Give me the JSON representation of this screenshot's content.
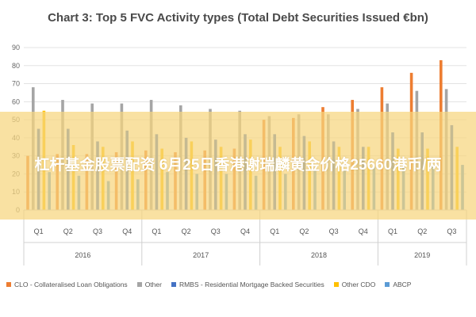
{
  "banner": {
    "text": "杠杆基金股票配资 6月25日香港谢瑞麟黄金价格25660港币/两"
  },
  "chart_data": {
    "type": "bar",
    "title": "Chart 3: Top 5 FVC Activity types (Total Debt Securities Issued €bn)",
    "xlabel": "",
    "ylabel": "",
    "ylim": [
      0,
      90
    ],
    "yticks": [
      0,
      10,
      20,
      30,
      40,
      50,
      60,
      70,
      80,
      90
    ],
    "grid": true,
    "legend_position": "bottom",
    "categories": [
      "Q1",
      "Q2",
      "Q3",
      "Q4",
      "Q1",
      "Q2",
      "Q3",
      "Q4",
      "Q1",
      "Q2",
      "Q3",
      "Q4",
      "Q1",
      "Q2",
      "Q3"
    ],
    "groups": [
      {
        "label": "2016",
        "count": 4
      },
      {
        "label": "2017",
        "count": 4
      },
      {
        "label": "2018",
        "count": 4
      },
      {
        "label": "2019",
        "count": 3
      }
    ],
    "series": [
      {
        "name": "CLO - Collateralised Loan Obligations",
        "color": "#ed7d31",
        "values": [
          30,
          31,
          31,
          32,
          33,
          32,
          33,
          34,
          50,
          51,
          57,
          61,
          68,
          76,
          83
        ]
      },
      {
        "name": "Other",
        "color": "#a5a5a5",
        "values": [
          68,
          61,
          59,
          59,
          61,
          58,
          56,
          55,
          52,
          53,
          53,
          56,
          59,
          66,
          67
        ]
      },
      {
        "name": "RMBS - Residential Mortgage Backed Securities",
        "color": "#4472c4",
        "values": [
          45,
          45,
          38,
          44,
          42,
          40,
          39,
          42,
          42,
          41,
          38,
          35,
          43,
          43,
          47
        ]
      },
      {
        "name": "Other CDO",
        "color": "#ffc000",
        "values": [
          55,
          36,
          35,
          38,
          34,
          38,
          35,
          39,
          35,
          38,
          35,
          35,
          34,
          34,
          35
        ]
      },
      {
        "name": "ABCP",
        "color": "#5b9bd5",
        "values": [
          21,
          19,
          16,
          17,
          21,
          20,
          20,
          19,
          20,
          22,
          22,
          24,
          24,
          25,
          25
        ]
      }
    ]
  }
}
